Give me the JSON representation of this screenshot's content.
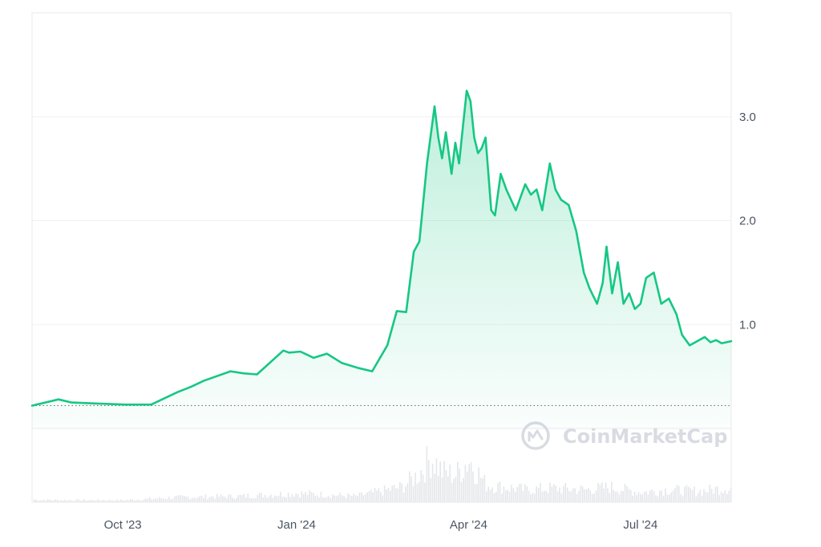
{
  "watermark": "CoinMarketCap",
  "colors": {
    "line": "#16c784",
    "grid": "#eef0f3",
    "frame": "#e8eaee",
    "volume": "#e4e6ea",
    "baseline": "#6b7280",
    "watermark": "#d8dbe2"
  },
  "chart_data": {
    "type": "area",
    "title": "",
    "xlabel": "",
    "ylabel": "",
    "ylim": [
      0,
      4.0
    ],
    "baseline_value": 0.22,
    "grid": true,
    "y_ticks": [
      {
        "value": 1.0,
        "label": "1.0"
      },
      {
        "value": 2.0,
        "label": "2.0"
      },
      {
        "value": 3.0,
        "label": "3.0"
      }
    ],
    "x_ticks": [
      {
        "date": "2023-10-01",
        "label": "Oct '23"
      },
      {
        "date": "2024-01-01",
        "label": "Jan '24"
      },
      {
        "date": "2024-04-01",
        "label": "Apr '24"
      },
      {
        "date": "2024-07-01",
        "label": "Jul '24"
      }
    ],
    "xlim": [
      "2023-08-14",
      "2024-08-18"
    ],
    "series": [
      {
        "values_x": [
          "2023-08-14",
          "2023-08-28",
          "2023-09-04",
          "2023-09-18",
          "2023-10-02",
          "2023-10-16",
          "2023-10-30",
          "2023-11-06",
          "2023-11-13",
          "2023-11-27",
          "2023-12-04",
          "2023-12-11",
          "2023-12-25",
          "2023-12-28",
          "2024-01-03",
          "2024-01-10",
          "2024-01-17",
          "2024-01-25",
          "2024-02-03",
          "2024-02-10",
          "2024-02-18",
          "2024-02-23",
          "2024-02-28",
          "2024-03-03",
          "2024-03-06",
          "2024-03-10",
          "2024-03-14",
          "2024-03-16",
          "2024-03-18",
          "2024-03-20",
          "2024-03-23",
          "2024-03-25",
          "2024-03-27",
          "2024-03-29",
          "2024-03-31",
          "2024-04-02",
          "2024-04-04",
          "2024-04-06",
          "2024-04-08",
          "2024-04-10",
          "2024-04-13",
          "2024-04-15",
          "2024-04-18",
          "2024-04-21",
          "2024-04-26",
          "2024-05-01",
          "2024-05-04",
          "2024-05-07",
          "2024-05-10",
          "2024-05-14",
          "2024-05-17",
          "2024-05-20",
          "2024-05-24",
          "2024-05-28",
          "2024-06-01",
          "2024-06-04",
          "2024-06-08",
          "2024-06-11",
          "2024-06-13",
          "2024-06-16",
          "2024-06-19",
          "2024-06-22",
          "2024-06-25",
          "2024-06-28",
          "2024-07-01",
          "2024-07-04",
          "2024-07-08",
          "2024-07-12",
          "2024-07-16",
          "2024-07-20",
          "2024-07-23",
          "2024-07-27",
          "2024-08-01",
          "2024-08-04",
          "2024-08-07",
          "2024-08-10",
          "2024-08-13",
          "2024-08-18"
        ],
        "values": [
          0.22,
          0.28,
          0.25,
          0.24,
          0.23,
          0.23,
          0.35,
          0.4,
          0.46,
          0.55,
          0.53,
          0.52,
          0.75,
          0.73,
          0.74,
          0.68,
          0.72,
          0.63,
          0.58,
          0.55,
          0.8,
          1.13,
          1.12,
          1.7,
          1.8,
          2.55,
          3.1,
          2.8,
          2.6,
          2.85,
          2.45,
          2.75,
          2.55,
          2.9,
          3.25,
          3.15,
          2.8,
          2.65,
          2.7,
          2.8,
          2.1,
          2.05,
          2.45,
          2.3,
          2.1,
          2.35,
          2.25,
          2.3,
          2.1,
          2.55,
          2.3,
          2.2,
          2.15,
          1.9,
          1.5,
          1.35,
          1.2,
          1.4,
          1.75,
          1.3,
          1.6,
          1.2,
          1.3,
          1.15,
          1.2,
          1.45,
          1.5,
          1.2,
          1.25,
          1.1,
          0.9,
          0.8,
          0.85,
          0.88,
          0.83,
          0.85,
          0.82,
          0.84
        ]
      }
    ],
    "volume": {
      "type": "bar",
      "x": [
        "2023-08-14",
        "2023-09-01",
        "2023-10-01",
        "2023-11-01",
        "2023-12-01",
        "2024-01-01",
        "2024-02-01",
        "2024-02-25",
        "2024-03-05",
        "2024-03-12",
        "2024-03-18",
        "2024-03-25",
        "2024-04-01",
        "2024-04-10",
        "2024-04-20",
        "2024-05-01",
        "2024-05-15",
        "2024-06-01",
        "2024-06-15",
        "2024-07-01",
        "2024-07-15",
        "2024-08-01",
        "2024-08-18"
      ],
      "values": [
        0.05,
        0.04,
        0.04,
        0.1,
        0.12,
        0.18,
        0.12,
        0.3,
        0.55,
        0.9,
        0.6,
        0.55,
        0.85,
        0.35,
        0.3,
        0.25,
        0.28,
        0.25,
        0.3,
        0.2,
        0.25,
        0.22,
        0.3
      ]
    }
  }
}
